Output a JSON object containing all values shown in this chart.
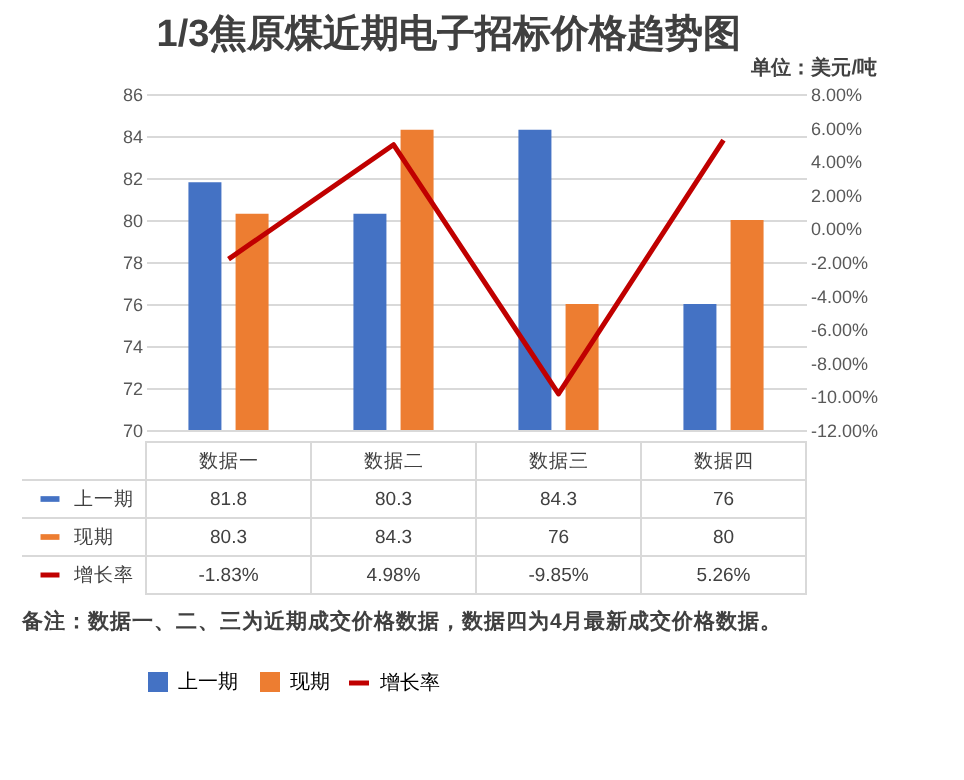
{
  "chart_data": {
    "type": "bar",
    "title": "1/3焦原煤近期电子招标价格趋势图",
    "subtitle": "单位：美元/吨",
    "annotations": [
      "备注：数据一、二、三为近期成交价格数据，数据四为4月最新成交价格数据。"
    ],
    "categories": [
      "数据一",
      "数据二",
      "数据三",
      "数据四"
    ],
    "series": [
      {
        "name": "上一期",
        "color": "#4472c4",
        "values": [
          81.8,
          80.3,
          84.3,
          76
        ]
      },
      {
        "name": "现期",
        "color": "#ed7d31",
        "values": [
          80.3,
          84.3,
          76,
          80
        ]
      },
      {
        "name": "增长率",
        "type": "line",
        "axis": "y2",
        "color": "#c00000",
        "values": [
          -1.83,
          4.98,
          -9.85,
          5.26
        ],
        "value_labels": [
          "-1.83%",
          "4.98%",
          "-9.85%",
          "5.26%"
        ]
      }
    ],
    "ylim": [
      70,
      86
    ],
    "yticks": [
      70,
      72,
      74,
      76,
      78,
      80,
      82,
      84,
      86
    ],
    "y2lim": [
      -12,
      8
    ],
    "y2ticks": [
      {
        "value": -12,
        "label": "-12.00%"
      },
      {
        "value": -10,
        "label": "-10.00%"
      },
      {
        "value": -8,
        "label": "-8.00%"
      },
      {
        "value": -6,
        "label": "-6.00%"
      },
      {
        "value": -4,
        "label": "-4.00%"
      },
      {
        "value": -2,
        "label": "-2.00%"
      },
      {
        "value": 0,
        "label": "0.00%"
      },
      {
        "value": 2,
        "label": "2.00%"
      },
      {
        "value": 4,
        "label": "4.00%"
      },
      {
        "value": 6,
        "label": "6.00%"
      },
      {
        "value": 8,
        "label": "8.00%"
      }
    ],
    "grid": "y",
    "legend": "bottom",
    "data_labels": true
  }
}
